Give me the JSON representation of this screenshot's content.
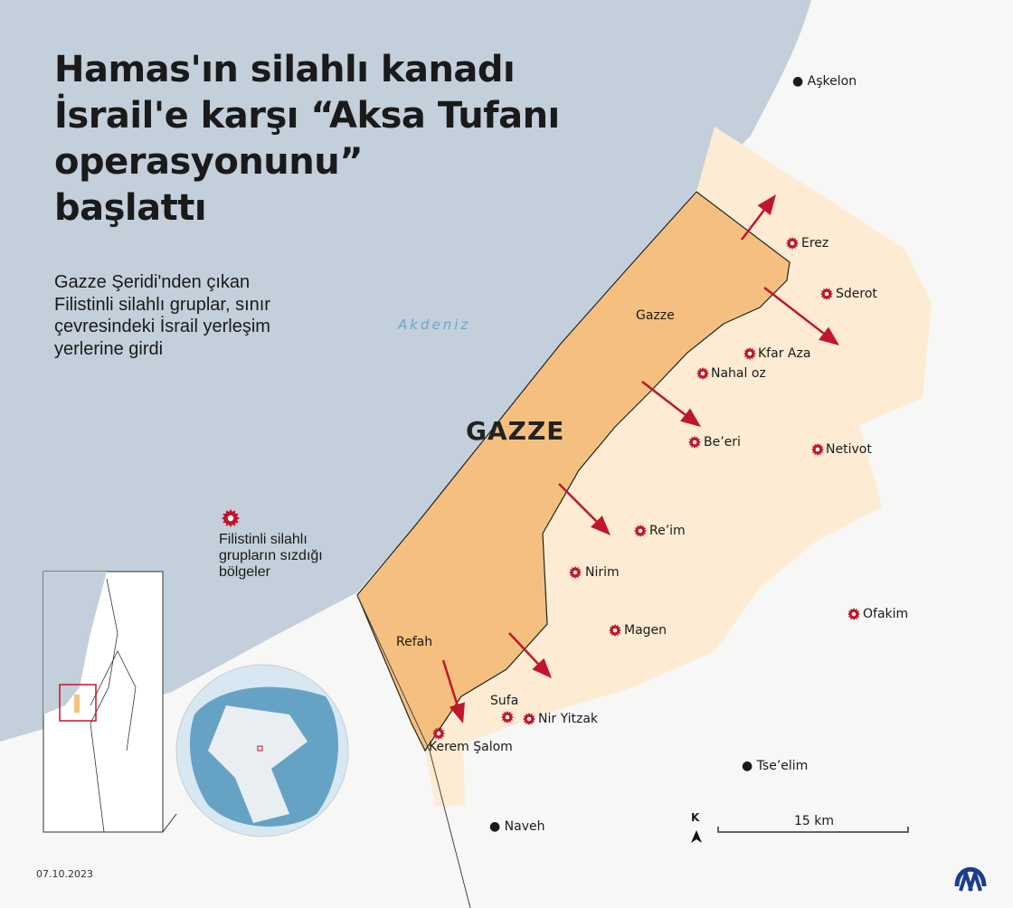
{
  "title_lines": [
    "Hamas'ın silahlı kanadı",
    "İsrail'e karşı “Aksa Tufanı",
    "operasyonunu”",
    "başlattı"
  ],
  "subtitle_lines": [
    "Gazze Şeridi'nden çıkan",
    "Filistinli silahlı gruplar, sınır",
    "çevresindeki İsrail yerleşim",
    "yerlerine girdi"
  ],
  "sea_label": "Akdeniz",
  "region_label": "GAZZE",
  "gaza_cities": [
    "Gazze",
    "Refah"
  ],
  "attacked_places": [
    "Erez",
    "Sderot",
    "Kfar Aza",
    "Nahal oz",
    "Be’eri",
    "Netivot",
    "Re’im",
    "Nirim",
    "Magen",
    "Ofakim",
    "Sufa",
    "Nir Yitzak",
    "Kerem Şalom"
  ],
  "cities": [
    "Aşkelon",
    "Tse’elim",
    "Naveh"
  ],
  "legend": {
    "icon": "infiltration-star-icon",
    "label_lines": [
      "Filistinli silahlı",
      "grupların sızdığı",
      "bölgeler"
    ]
  },
  "scale": {
    "label": "15 km"
  },
  "north": {
    "label": "K"
  },
  "date": "07.10.2023",
  "logo": "AA",
  "colors": {
    "sea": "#c3cfda",
    "gaza": "#f5c07f",
    "affected": "#fdebd3",
    "marker": "#c0162c",
    "land": "#f7f7f5",
    "logo": "#1a3d8f"
  }
}
